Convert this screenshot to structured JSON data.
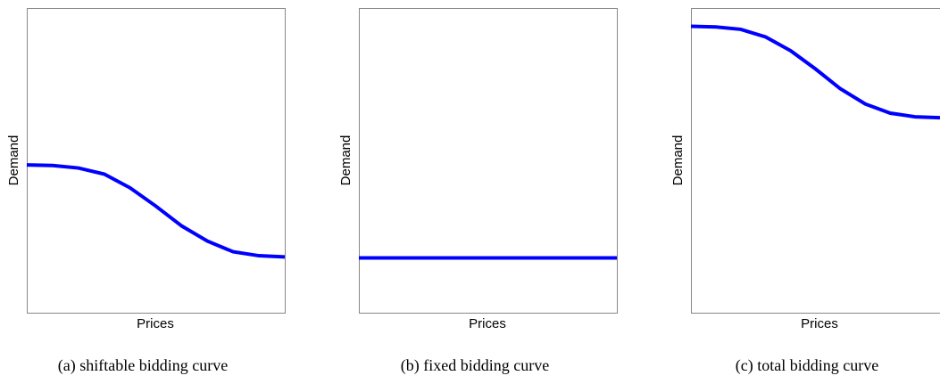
{
  "chart_data": [
    {
      "type": "line",
      "xlabel": "Prices",
      "ylabel": "Demand",
      "caption": "(a) shiftable bidding curve",
      "x": [
        0,
        10,
        20,
        30,
        40,
        50,
        60,
        70,
        80,
        90,
        100
      ],
      "xlim": [
        0,
        100
      ],
      "ylim": [
        0,
        100
      ],
      "series": [
        {
          "color": "#0000ff",
          "values": [
            48.5,
            48.3,
            47.5,
            45.5,
            41,
            35,
            28.5,
            23.5,
            20,
            18.7,
            18.3
          ]
        }
      ]
    },
    {
      "type": "line",
      "xlabel": "Prices",
      "ylabel": "Demand",
      "caption": "(b) fixed bidding curve",
      "x": [
        0,
        10,
        20,
        30,
        40,
        50,
        60,
        70,
        80,
        90,
        100
      ],
      "xlim": [
        0,
        100
      ],
      "ylim": [
        0,
        100
      ],
      "series": [
        {
          "color": "#0000ff",
          "values": [
            18,
            18,
            18,
            18,
            18,
            18,
            18,
            18,
            18,
            18,
            18
          ]
        }
      ]
    },
    {
      "type": "line",
      "xlabel": "Prices",
      "ylabel": "Demand",
      "caption": "(c) total bidding curve",
      "x": [
        0,
        10,
        20,
        30,
        40,
        50,
        60,
        70,
        80,
        90,
        100
      ],
      "xlim": [
        0,
        100
      ],
      "ylim": [
        0,
        100
      ],
      "series": [
        {
          "color": "#0000ff",
          "values": [
            94,
            93.8,
            93,
            90.5,
            86,
            80,
            73.5,
            68.5,
            65.5,
            64.3,
            64
          ]
        }
      ]
    }
  ]
}
